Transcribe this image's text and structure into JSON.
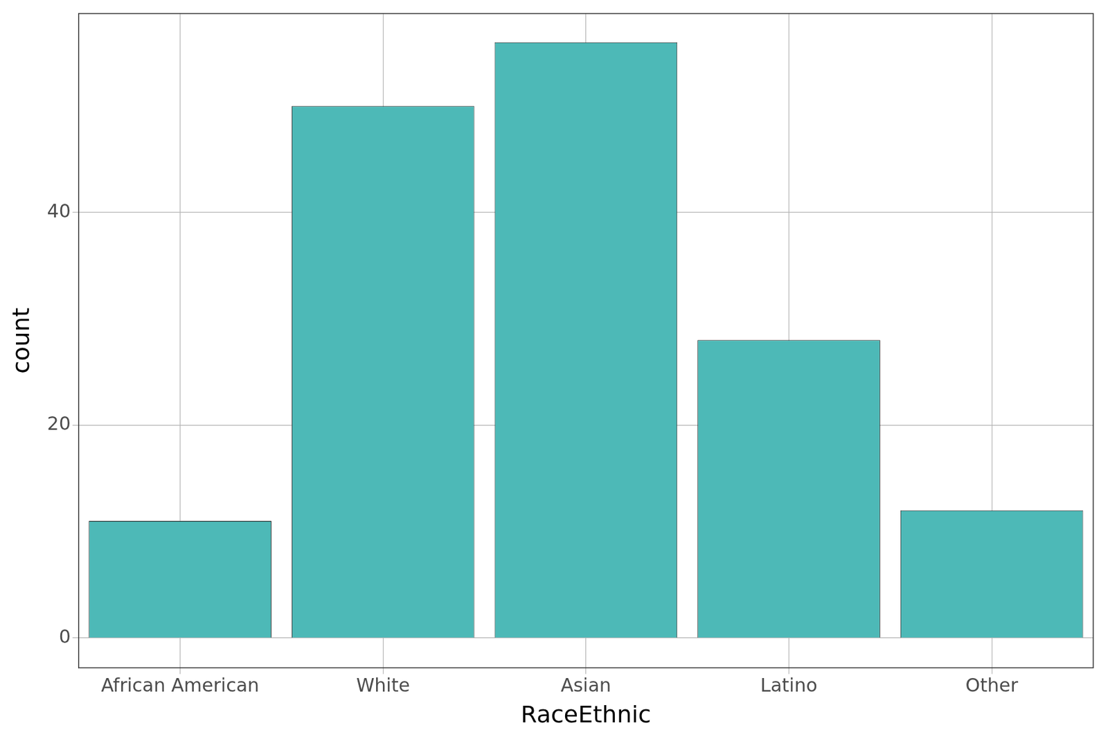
{
  "chart_data": {
    "type": "bar",
    "x_label": "RaceEthnic",
    "y_label": "count",
    "categories": [
      "African American",
      "White",
      "Asian",
      "Latino",
      "Other"
    ],
    "values": [
      11,
      50,
      56,
      28,
      12
    ],
    "color": "#4db9b7",
    "ylim": [
      -2.8,
      58.7
    ],
    "yticks": [
      0,
      20,
      40
    ],
    "grid": true
  }
}
